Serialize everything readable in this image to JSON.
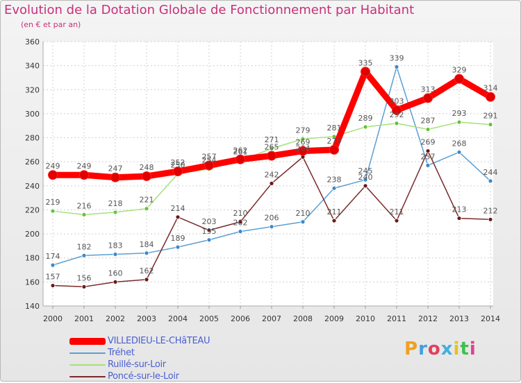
{
  "header": {
    "title": "Evolution de la Dotation Globale de Fonctionnement par Habitant",
    "subtitle": "(en € et par an)"
  },
  "logo": {
    "text": "Proxiti",
    "colors": [
      "#f0a020",
      "#40a0e0",
      "#e04060",
      "#40b0e0",
      "#e8c020",
      "#40c050",
      "#e04090"
    ]
  },
  "chart_data": {
    "type": "line",
    "title": "Evolution de la Dotation Globale de Fonctionnement par Habitant",
    "subtitle": "(en € et par an)",
    "xlabel": "",
    "ylabel": "",
    "ylim": [
      140,
      360
    ],
    "yticks": [
      140,
      160,
      180,
      200,
      220,
      240,
      260,
      280,
      300,
      320,
      340,
      360
    ],
    "grid": true,
    "legend_position": "bottom-left",
    "x": [
      "2000",
      "2001",
      "2002",
      "2003",
      "2004",
      "2005",
      "2006",
      "2007",
      "2008",
      "2009",
      "2010",
      "2011",
      "2012",
      "2013",
      "2014"
    ],
    "series": [
      {
        "name": "VILLEDIEU-LE-CHâTEAU",
        "color": "#ff0000",
        "marker": "#e00000",
        "values": [
          249,
          249,
          247,
          248,
          252,
          257,
          262,
          265,
          269,
          270,
          335,
          303,
          313,
          329,
          314
        ]
      },
      {
        "name": "Tréhet",
        "color": "#5a9fd4",
        "marker": "#3d88c8",
        "values": [
          174,
          182,
          183,
          184,
          189,
          195,
          202,
          206,
          210,
          238,
          245,
          339,
          257,
          268,
          244
        ]
      },
      {
        "name": "Ruillé-sur-Loir",
        "color": "#a6e07a",
        "marker": "#66c23a",
        "values": [
          219,
          216,
          218,
          221,
          250,
          254,
          261,
          271,
          279,
          281,
          289,
          292,
          287,
          293,
          291
        ]
      },
      {
        "name": "Poncé-sur-le-Loir",
        "color": "#7a2a2a",
        "marker": "#6a1818",
        "values": [
          157,
          156,
          160,
          162,
          214,
          203,
          210,
          242,
          264,
          211,
          240,
          211,
          269,
          213,
          212
        ]
      }
    ]
  }
}
